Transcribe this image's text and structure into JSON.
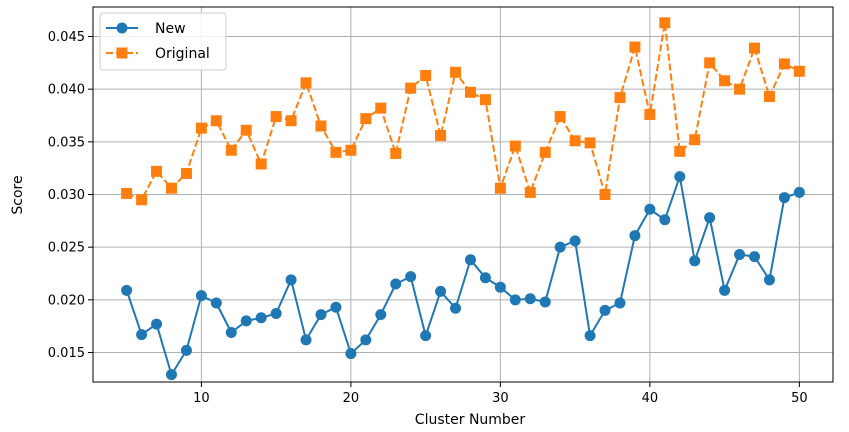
{
  "chart_data": {
    "type": "line",
    "title": "",
    "xlabel": "Cluster Number",
    "ylabel": "Score",
    "xlim": [
      2.75,
      52.25
    ],
    "ylim": [
      0.0122,
      0.0478
    ],
    "xticks": [
      10,
      20,
      30,
      40,
      50
    ],
    "yticks": [
      0.015,
      0.02,
      0.025,
      0.03,
      0.035,
      0.04,
      0.045
    ],
    "xtick_labels": [
      "10",
      "20",
      "30",
      "40",
      "50"
    ],
    "ytick_labels": [
      "0.015",
      "0.020",
      "0.025",
      "0.030",
      "0.035",
      "0.040",
      "0.045"
    ],
    "grid": true,
    "legend_position": "top-left",
    "x": [
      5,
      6,
      7,
      8,
      9,
      10,
      11,
      12,
      13,
      14,
      15,
      16,
      17,
      18,
      19,
      20,
      21,
      22,
      23,
      24,
      25,
      26,
      27,
      28,
      29,
      30,
      31,
      32,
      33,
      34,
      35,
      36,
      37,
      38,
      39,
      40,
      41,
      42,
      43,
      44,
      45,
      46,
      47,
      48,
      49,
      50
    ],
    "series": [
      {
        "name": "New",
        "color": "#1f77b4",
        "line_style": "solid",
        "marker": "circle",
        "values": [
          0.0209,
          0.0167,
          0.0177,
          0.0129,
          0.0152,
          0.0204,
          0.0197,
          0.0169,
          0.018,
          0.0183,
          0.0187,
          0.0219,
          0.0162,
          0.0186,
          0.0193,
          0.0149,
          0.0162,
          0.0186,
          0.0215,
          0.0222,
          0.0166,
          0.0208,
          0.0192,
          0.0238,
          0.0221,
          0.0212,
          0.02,
          0.0201,
          0.0198,
          0.025,
          0.0256,
          0.0166,
          0.019,
          0.0197,
          0.0261,
          0.0286,
          0.0276,
          0.0317,
          0.0237,
          0.0278,
          0.0209,
          0.0243,
          0.0241,
          0.0219,
          0.0297,
          0.0302
        ]
      },
      {
        "name": "Original",
        "color": "#ff7f0e",
        "line_style": "dashed",
        "marker": "square",
        "values": [
          0.0301,
          0.0295,
          0.0322,
          0.0306,
          0.032,
          0.0363,
          0.037,
          0.0342,
          0.0361,
          0.0329,
          0.0374,
          0.037,
          0.0406,
          0.0365,
          0.034,
          0.0342,
          0.0372,
          0.0382,
          0.0339,
          0.0401,
          0.0413,
          0.0356,
          0.0416,
          0.0397,
          0.039,
          0.0306,
          0.0346,
          0.0302,
          0.034,
          0.0374,
          0.0351,
          0.0349,
          0.03,
          0.0392,
          0.044,
          0.0376,
          0.0463,
          0.0341,
          0.0352,
          0.0425,
          0.0408,
          0.04,
          0.0439,
          0.0393,
          0.0424,
          0.0417
        ]
      }
    ]
  }
}
